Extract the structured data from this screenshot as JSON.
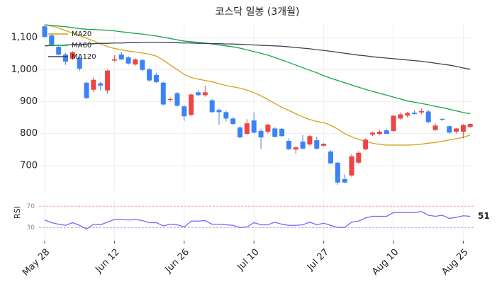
{
  "chart_data": [
    {
      "type": "candlestick",
      "title": "코스닥 일봉 (3개월)",
      "categories": [
        "May 28",
        null,
        null,
        null,
        null,
        null,
        null,
        null,
        null,
        null,
        "Jun 12",
        null,
        null,
        null,
        null,
        null,
        null,
        null,
        null,
        null,
        "Jun 26",
        null,
        null,
        null,
        null,
        null,
        null,
        null,
        null,
        null,
        "Jul 10",
        null,
        null,
        null,
        null,
        null,
        null,
        null,
        null,
        null,
        "Jul 27",
        null,
        null,
        null,
        null,
        null,
        null,
        null,
        null,
        null,
        "Aug 10",
        null,
        null,
        null,
        null,
        null,
        null,
        null,
        null,
        null,
        "Aug 25",
        null
      ],
      "open": [
        1135,
        1107,
        1071,
        1047,
        1034,
        1036,
        959,
        937,
        957,
        935,
        1028,
        1047,
        1038,
        1016,
        1030,
        1001,
        983,
        959,
        905,
        926,
        885,
        858,
        929,
        920,
        904,
        874,
        867,
        847,
        819,
        799,
        841,
        808,
        806,
        816,
        815,
        777,
        750,
        775,
        766,
        779,
        762,
        744,
        709,
        658,
        669,
        709,
        751,
        797,
        799,
        810,
        808,
        847,
        856,
        865,
        866,
        869,
        811,
        846,
        823,
        806,
        806,
        821
      ],
      "high": [
        1140,
        1112,
        1078,
        1052,
        1058,
        1040,
        962,
        975,
        962,
        1000,
        1045,
        1055,
        1042,
        1035,
        1034,
        1005,
        990,
        962,
        912,
        930,
        890,
        925,
        935,
        950,
        908,
        878,
        872,
        852,
        824,
        845,
        866,
        815,
        830,
        820,
        818,
        785,
        760,
        795,
        795,
        790,
        770,
        748,
        712,
        672,
        735,
        745,
        785,
        805,
        812,
        815,
        856,
        866,
        868,
        872,
        878,
        874,
        832,
        848,
        825,
        818,
        830,
        832
      ],
      "low": [
        1100,
        1075,
        1045,
        1015,
        1030,
        995,
        908,
        930,
        935,
        925,
        1025,
        1030,
        1015,
        1012,
        995,
        962,
        958,
        888,
        900,
        884,
        840,
        855,
        918,
        915,
        865,
        828,
        838,
        826,
        785,
        796,
        800,
        752,
        800,
        788,
        790,
        748,
        738,
        750,
        762,
        750,
        760,
        705,
        640,
        645,
        665,
        705,
        748,
        792,
        795,
        799,
        805,
        844,
        850,
        860,
        860,
        832,
        808,
        840,
        800,
        800,
        785,
        818
      ],
      "close": [
        1102,
        1078,
        1047,
        1025,
        1054,
        1003,
        911,
        968,
        950,
        997,
        1032,
        1032,
        1019,
        1032,
        999,
        966,
        961,
        891,
        908,
        887,
        854,
        922,
        920,
        929,
        867,
        867,
        847,
        830,
        788,
        832,
        803,
        788,
        828,
        790,
        792,
        751,
        757,
        753,
        792,
        753,
        768,
        707,
        647,
        647,
        729,
        740,
        781,
        803,
        806,
        799,
        856,
        860,
        864,
        861,
        870,
        836,
        825,
        843,
        803,
        816,
        827,
        830
      ],
      "up_color": "#ef4444",
      "down_color": "#3b82f6",
      "series": [
        {
          "name": "MA20",
          "color": "#d4a017",
          "values": [
            1140,
            1136,
            1130,
            1122,
            1114,
            1106,
            1098,
            1090,
            1080,
            1072,
            1066,
            1062,
            1058,
            1055,
            1052,
            1048,
            1042,
            1030,
            1014,
            1000,
            985,
            975,
            970,
            966,
            962,
            956,
            950,
            946,
            942,
            936,
            928,
            918,
            906,
            894,
            882,
            872,
            862,
            852,
            844,
            838,
            834,
            826,
            814,
            800,
            790,
            782,
            776,
            770,
            766,
            764,
            764,
            764,
            764,
            765,
            767,
            770,
            772,
            776,
            780,
            784,
            788,
            796
          ]
        },
        {
          "name": "MA60",
          "color": "#16a34a",
          "values": [
            1140,
            1138,
            1136,
            1134,
            1131,
            1128,
            1126,
            1125,
            1124,
            1123,
            1121,
            1118,
            1116,
            1113,
            1111,
            1108,
            1105,
            1101,
            1097,
            1093,
            1089,
            1087,
            1085,
            1083,
            1080,
            1077,
            1074,
            1071,
            1067,
            1062,
            1056,
            1051,
            1045,
            1038,
            1030,
            1022,
            1014,
            1006,
            998,
            990,
            981,
            973,
            966,
            959,
            952,
            945,
            938,
            932,
            926,
            920,
            914,
            908,
            902,
            898,
            894,
            890,
            885,
            881,
            876,
            871,
            866,
            862
          ]
        },
        {
          "name": "MA120",
          "color": "#374151",
          "values": [
            1074,
            1075,
            1076,
            1077,
            1078,
            1079,
            1080,
            1081,
            1082,
            1082,
            1083,
            1083,
            1084,
            1084,
            1085,
            1085,
            1085,
            1085,
            1084,
            1084,
            1083,
            1083,
            1082,
            1082,
            1081,
            1081,
            1080,
            1080,
            1079,
            1078,
            1077,
            1076,
            1075,
            1074,
            1073,
            1071,
            1069,
            1067,
            1065,
            1062,
            1060,
            1057,
            1054,
            1051,
            1048,
            1045,
            1043,
            1040,
            1038,
            1036,
            1034,
            1032,
            1030,
            1028,
            1026,
            1023,
            1020,
            1017,
            1014,
            1010,
            1005,
            1001
          ]
        }
      ],
      "ylim": [
        620,
        1140
      ],
      "yticks": [
        700,
        800,
        900,
        {
          "value": 1000,
          "label": "1,000"
        },
        {
          "value": 1100,
          "label": "1,100"
        }
      ],
      "grid": true,
      "legend": "upper-left"
    },
    {
      "type": "line",
      "ylabel": "RSI",
      "color": "#8b5cf6",
      "values": [
        44,
        39,
        36,
        34,
        39,
        34,
        27,
        36,
        35,
        40,
        45,
        45,
        44,
        45,
        43,
        39,
        39,
        33,
        36,
        35,
        31,
        42,
        42,
        43,
        36,
        36,
        35,
        34,
        30,
        31,
        39,
        35,
        35,
        40,
        36,
        34,
        34,
        35,
        40,
        35,
        38,
        34,
        30,
        30,
        40,
        42,
        48,
        51,
        51,
        51,
        58,
        58,
        58,
        58,
        60,
        53,
        51,
        53,
        47,
        49,
        52,
        51
      ],
      "ylim": [
        5,
        85
      ],
      "yticks": [
        30,
        70
      ],
      "ytick_line_colors": [
        "#93b4e8",
        "#f0a0a0"
      ]
    }
  ]
}
